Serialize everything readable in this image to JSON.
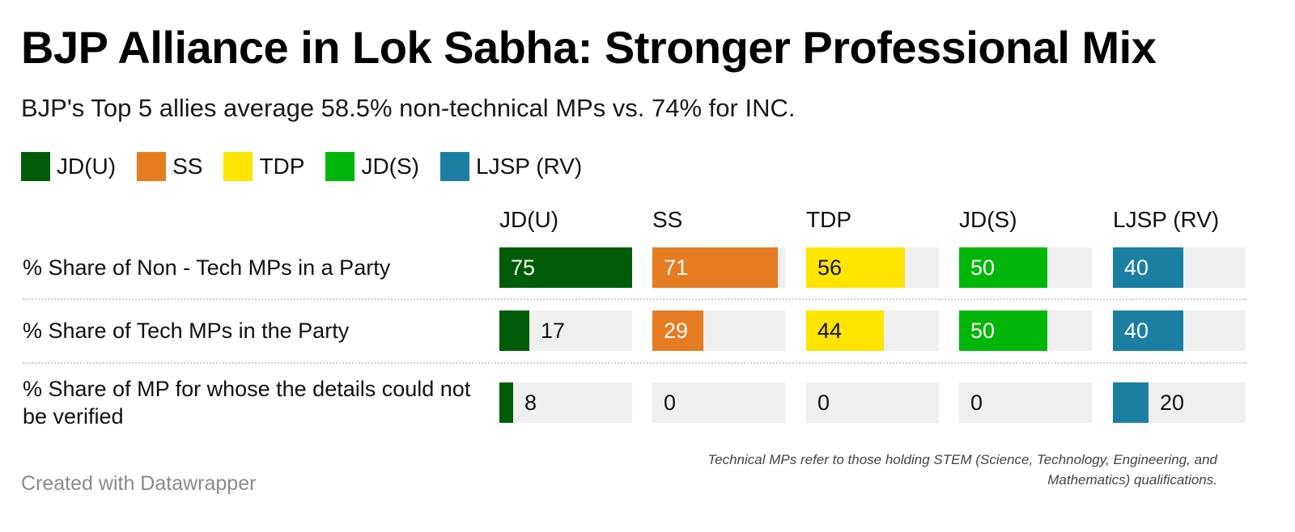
{
  "header": {
    "title": "BJP Alliance in Lok Sabha: Stronger Professional Mix",
    "subtitle": "BJP's Top 5 allies average 58.5% non-technical MPs vs. 74% for INC."
  },
  "footer": {
    "credit": "Created with Datawrapper",
    "note": "Technical MPs refer to those holding STEM (Science, Technology, Engineering, and Mathematics) qualifications."
  },
  "chart_data": {
    "type": "bar",
    "layout": "small-multiples-table",
    "xlim": [
      0,
      75
    ],
    "categories": [
      "% Share of Non - Tech MPs in a Party",
      "% Share of Tech MPs in the Party",
      "% Share of MP for whose the details could not be verified"
    ],
    "series": [
      {
        "name": "JD(U)",
        "color": "#005c09",
        "values": [
          75,
          17,
          8
        ]
      },
      {
        "name": "SS",
        "color": "#e67c22",
        "values": [
          71,
          29,
          0
        ]
      },
      {
        "name": "TDP",
        "color": "#ffe400",
        "values": [
          56,
          44,
          0
        ]
      },
      {
        "name": "JD(S)",
        "color": "#00b709",
        "values": [
          50,
          50,
          0
        ]
      },
      {
        "name": "LJSP (RV)",
        "color": "#1b7fa4",
        "values": [
          40,
          40,
          20
        ]
      }
    ],
    "legend": {
      "position": "top-left"
    },
    "grid": false,
    "cell_background": "#efefef"
  }
}
